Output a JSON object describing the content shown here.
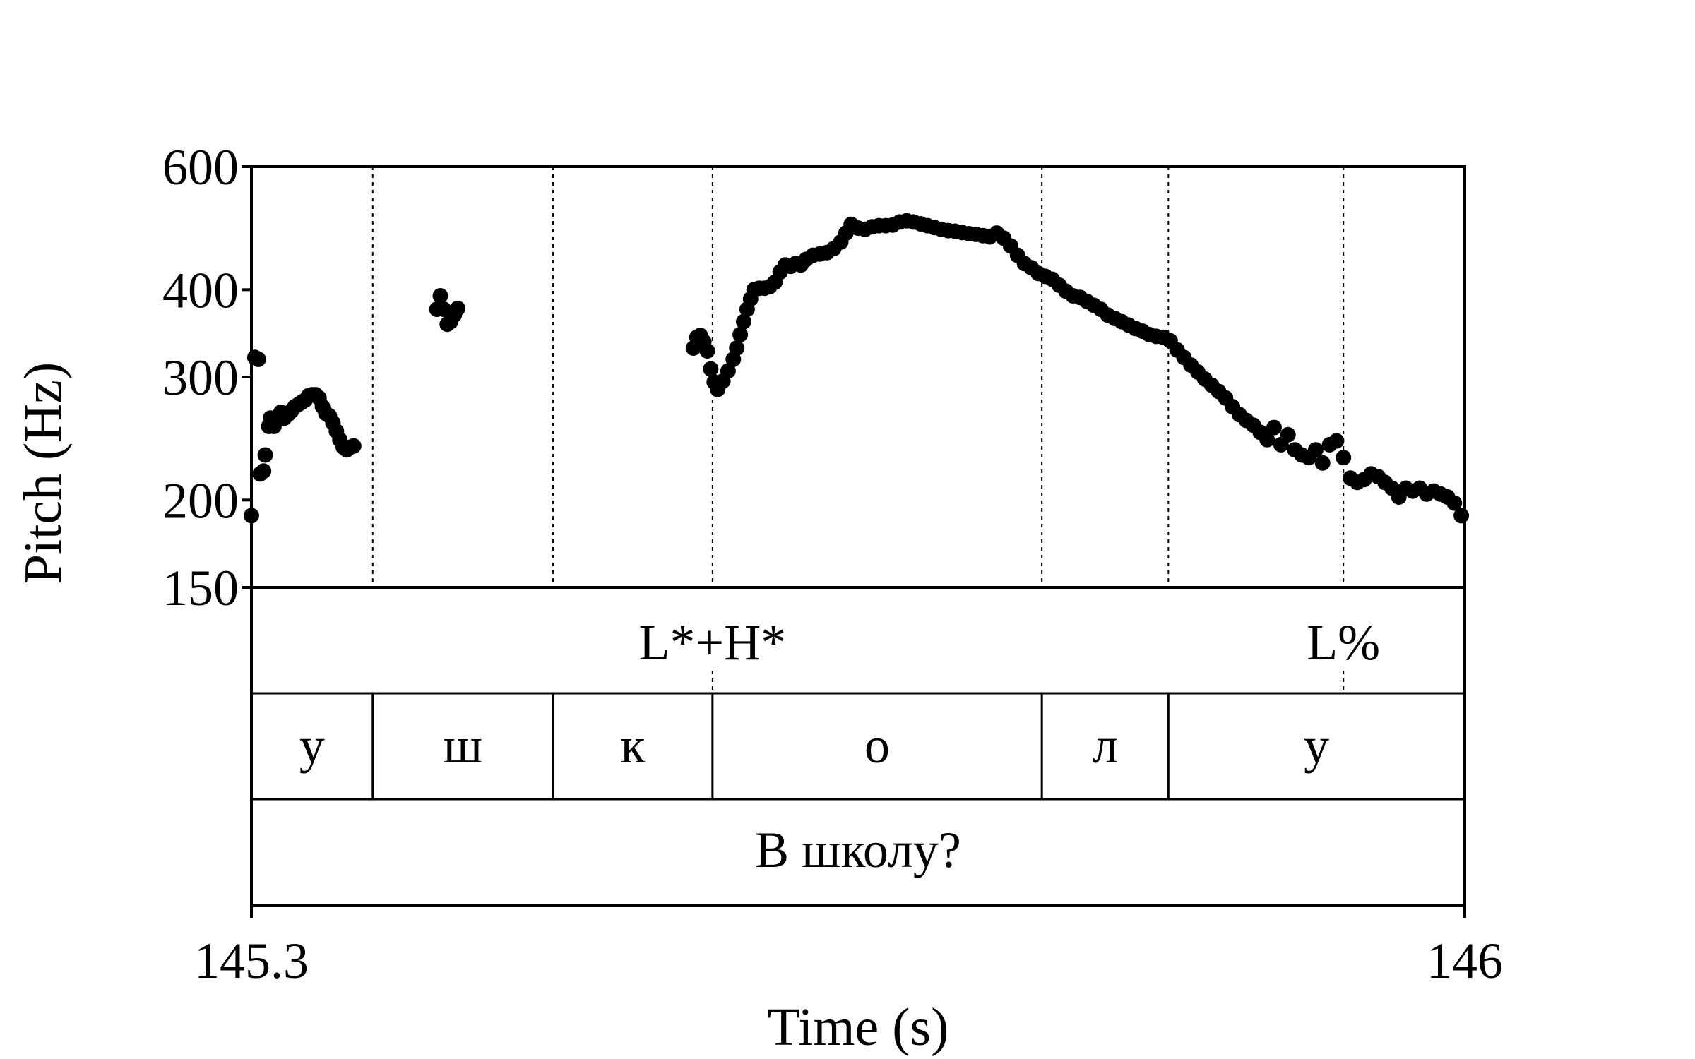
{
  "chart_data": {
    "type": "scatter",
    "title": "",
    "xlabel": "Time (s)",
    "ylabel": "Pitch (Hz)",
    "xlim": [
      145.3,
      146
    ],
    "ylim": [
      150,
      600
    ],
    "y_scale": "log",
    "x_ticks": [
      {
        "value": 145.3,
        "label": "145.3"
      },
      {
        "value": 146,
        "label": "146"
      }
    ],
    "y_ticks": [
      {
        "value": 150,
        "label": "150"
      },
      {
        "value": 200,
        "label": "200"
      },
      {
        "value": 300,
        "label": "300"
      },
      {
        "value": 400,
        "label": "400"
      },
      {
        "value": 600,
        "label": "600"
      }
    ],
    "grid": false,
    "boundaries": [
      145.37,
      145.474,
      145.566,
      145.756,
      145.829,
      146.0
    ],
    "tone_anchor": 145.93,
    "tiers": [
      {
        "name": "tones",
        "labels": [
          {
            "text": "L*+H*",
            "t": 145.566
          },
          {
            "text": "L%",
            "t": 145.93
          }
        ]
      },
      {
        "name": "phones",
        "intervals": [
          {
            "text": "у",
            "start": 145.3,
            "end": 145.37
          },
          {
            "text": "ш",
            "start": 145.37,
            "end": 145.474
          },
          {
            "text": "к",
            "start": 145.474,
            "end": 145.566
          },
          {
            "text": "о",
            "start": 145.566,
            "end": 145.756
          },
          {
            "text": "л",
            "start": 145.756,
            "end": 145.829
          },
          {
            "text": "у",
            "start": 145.829,
            "end": 146.0
          }
        ]
      },
      {
        "name": "words",
        "intervals": [
          {
            "text": "В школу?",
            "start": 145.3,
            "end": 146.0
          }
        ]
      }
    ],
    "series": [
      {
        "points": [
          [
            145.3,
            190
          ],
          [
            145.302,
            320
          ],
          [
            145.304,
            318
          ],
          [
            145.305,
            218
          ],
          [
            145.307,
            220
          ],
          [
            145.308,
            232
          ],
          [
            145.31,
            255
          ],
          [
            145.311,
            262
          ],
          [
            145.313,
            255
          ],
          [
            145.315,
            262
          ],
          [
            145.317,
            267
          ],
          [
            145.319,
            262
          ],
          [
            145.321,
            265
          ],
          [
            145.323,
            268
          ],
          [
            145.325,
            272
          ],
          [
            145.327,
            274
          ],
          [
            145.329,
            276
          ],
          [
            145.331,
            278
          ],
          [
            145.333,
            282
          ],
          [
            145.335,
            283
          ],
          [
            145.337,
            283
          ],
          [
            145.339,
            280
          ],
          [
            145.341,
            272
          ],
          [
            145.343,
            266
          ],
          [
            145.345,
            264
          ],
          [
            145.347,
            258
          ],
          [
            145.349,
            251
          ],
          [
            145.351,
            244
          ],
          [
            145.353,
            238
          ],
          [
            145.355,
            236
          ],
          [
            145.357,
            238
          ],
          [
            145.359,
            239
          ],
          [
            145.407,
            375
          ],
          [
            145.409,
            392
          ],
          [
            145.411,
            375
          ],
          [
            145.413,
            357
          ],
          [
            145.415,
            360
          ],
          [
            145.417,
            368
          ],
          [
            145.419,
            376
          ],
          [
            145.555,
            330
          ],
          [
            145.557,
            342
          ],
          [
            145.559,
            344
          ],
          [
            145.561,
            337
          ],
          [
            145.563,
            327
          ],
          [
            145.565,
            308
          ],
          [
            145.567,
            295
          ],
          [
            145.569,
            288
          ],
          [
            145.572,
            296
          ],
          [
            145.575,
            306
          ],
          [
            145.578,
            318
          ],
          [
            145.58,
            330
          ],
          [
            145.582,
            345
          ],
          [
            145.584,
            360
          ],
          [
            145.586,
            375
          ],
          [
            145.588,
            388
          ],
          [
            145.59,
            400
          ],
          [
            145.593,
            402
          ],
          [
            145.596,
            402
          ],
          [
            145.599,
            404
          ],
          [
            145.602,
            410
          ],
          [
            145.605,
            424
          ],
          [
            145.608,
            434
          ],
          [
            145.611,
            432
          ],
          [
            145.614,
            436
          ],
          [
            145.617,
            434
          ],
          [
            145.62,
            442
          ],
          [
            145.624,
            448
          ],
          [
            145.628,
            450
          ],
          [
            145.632,
            452
          ],
          [
            145.636,
            458
          ],
          [
            145.64,
            468
          ],
          [
            145.643,
            482
          ],
          [
            145.646,
            496
          ],
          [
            145.65,
            490
          ],
          [
            145.654,
            488
          ],
          [
            145.658,
            492
          ],
          [
            145.662,
            494
          ],
          [
            145.666,
            494
          ],
          [
            145.67,
            495
          ],
          [
            145.674,
            500
          ],
          [
            145.678,
            502
          ],
          [
            145.682,
            500
          ],
          [
            145.686,
            497
          ],
          [
            145.69,
            494
          ],
          [
            145.694,
            491
          ],
          [
            145.698,
            488
          ],
          [
            145.702,
            486
          ],
          [
            145.706,
            485
          ],
          [
            145.71,
            483
          ],
          [
            145.714,
            481
          ],
          [
            145.718,
            480
          ],
          [
            145.722,
            478
          ],
          [
            145.726,
            476
          ],
          [
            145.73,
            482
          ],
          [
            145.734,
            474
          ],
          [
            145.738,
            462
          ],
          [
            145.742,
            448
          ],
          [
            145.746,
            436
          ],
          [
            145.75,
            430
          ],
          [
            145.754,
            422
          ],
          [
            145.758,
            418
          ],
          [
            145.762,
            414
          ],
          [
            145.766,
            406
          ],
          [
            145.77,
            398
          ],
          [
            145.774,
            392
          ],
          [
            145.778,
            390
          ],
          [
            145.782,
            385
          ],
          [
            145.786,
            380
          ],
          [
            145.79,
            375
          ],
          [
            145.794,
            368
          ],
          [
            145.798,
            364
          ],
          [
            145.802,
            360
          ],
          [
            145.806,
            356
          ],
          [
            145.81,
            352
          ],
          [
            145.814,
            349
          ],
          [
            145.818,
            345
          ],
          [
            145.822,
            343
          ],
          [
            145.826,
            342
          ],
          [
            145.83,
            338
          ],
          [
            145.834,
            328
          ],
          [
            145.838,
            320
          ],
          [
            145.842,
            312
          ],
          [
            145.846,
            305
          ],
          [
            145.85,
            298
          ],
          [
            145.854,
            292
          ],
          [
            145.858,
            286
          ],
          [
            145.862,
            280
          ],
          [
            145.866,
            272
          ],
          [
            145.87,
            265
          ],
          [
            145.874,
            260
          ],
          [
            145.878,
            256
          ],
          [
            145.882,
            250
          ],
          [
            145.886,
            244
          ],
          [
            145.89,
            254
          ],
          [
            145.894,
            240
          ],
          [
            145.898,
            248
          ],
          [
            145.902,
            236
          ],
          [
            145.906,
            232
          ],
          [
            145.91,
            230
          ],
          [
            145.914,
            236
          ],
          [
            145.918,
            226
          ],
          [
            145.922,
            240
          ],
          [
            145.926,
            243
          ],
          [
            145.93,
            230
          ],
          [
            145.934,
            215
          ],
          [
            145.938,
            212
          ],
          [
            145.942,
            214
          ],
          [
            145.946,
            218
          ],
          [
            145.95,
            216
          ],
          [
            145.954,
            212
          ],
          [
            145.958,
            208
          ],
          [
            145.962,
            202
          ],
          [
            145.966,
            208
          ],
          [
            145.97,
            206
          ],
          [
            145.974,
            208
          ],
          [
            145.978,
            204
          ],
          [
            145.982,
            206
          ],
          [
            145.986,
            204
          ],
          [
            145.99,
            202
          ],
          [
            145.994,
            198
          ],
          [
            145.998,
            190
          ]
        ]
      }
    ]
  }
}
